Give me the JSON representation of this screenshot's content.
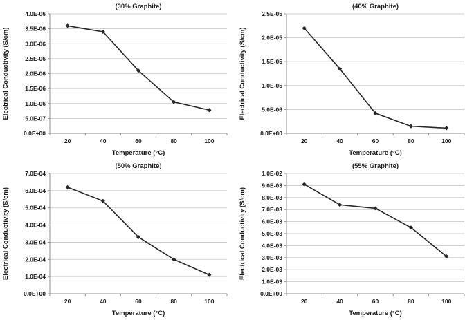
{
  "figure": {
    "background": "#ffffff",
    "grid_color": "#c3c3c3",
    "axis_color": "#8c8c8c",
    "line_color": "#262626",
    "text_color": "#1a1a1a"
  },
  "chart_data": [
    {
      "type": "line",
      "title": "(30% Graphite)",
      "xlabel": "Temperature (°C)",
      "ylabel": "Electrical Conductivity (S/cm)",
      "x_labels": [
        "20",
        "40",
        "60",
        "80",
        "100"
      ],
      "x": [
        20,
        40,
        60,
        80,
        100
      ],
      "values": [
        3.6e-06,
        3.4e-06,
        2.1e-06,
        1.05e-06,
        7.8e-07
      ],
      "ylim": [
        0,
        4e-06
      ],
      "ytick_labels": [
        "0.0E+00",
        "5.0E-07",
        "1.0E-06",
        "1.5E-06",
        "2.0E-06",
        "2.5E-06",
        "3.0E-06",
        "3.5E-06",
        "4.0E-06"
      ],
      "grid": true,
      "legend": "none",
      "marker": "diamond"
    },
    {
      "type": "line",
      "title": "(40% Graphite)",
      "xlabel": "Temperature (°C)",
      "ylabel": "Electrical Conductivity (S/cm)",
      "x_labels": [
        "20",
        "40",
        "60",
        "80",
        "100"
      ],
      "x": [
        20,
        40,
        60,
        80,
        100
      ],
      "values": [
        2.2e-05,
        1.35e-05,
        4.2e-06,
        1.5e-06,
        1.1e-06
      ],
      "ylim": [
        0,
        2.5e-05
      ],
      "ytick_labels": [
        "0.0E+00",
        "5.0E-06",
        "1.0E-05",
        "1.5E-05",
        "2.0E-05",
        "2.5E-05"
      ],
      "grid": true,
      "legend": "none",
      "marker": "diamond"
    },
    {
      "type": "line",
      "title": "(50% Graphite)",
      "xlabel": "Temperature (°C)",
      "ylabel": "Electrical Conductivity (S/cm)",
      "x_labels": [
        "20",
        "40",
        "60",
        "80",
        "100"
      ],
      "x": [
        20,
        40,
        60,
        80,
        100
      ],
      "values": [
        0.00062,
        0.00054,
        0.00033,
        0.0002,
        0.00011
      ],
      "ylim": [
        0,
        0.0007
      ],
      "ytick_labels": [
        "0.0E+00",
        "1.0E-04",
        "2.0E-04",
        "3.0E-04",
        "4.0E-04",
        "5.0E-04",
        "6.0E-04",
        "7.0E-04"
      ],
      "grid": true,
      "legend": "none",
      "marker": "diamond"
    },
    {
      "type": "line",
      "title": "(55% Graphite)",
      "xlabel": "Temperature (°C)",
      "ylabel": "Electrical Conductivity (S/cm)",
      "x_labels": [
        "20",
        "40",
        "60",
        "80",
        "100"
      ],
      "x": [
        20,
        40,
        60,
        80,
        100
      ],
      "values": [
        0.0091,
        0.0074,
        0.0071,
        0.0055,
        0.0031
      ],
      "ylim": [
        0,
        0.01
      ],
      "ytick_labels": [
        "0.0E+00",
        "1.0E-03",
        "2.0E-03",
        "3.0E-03",
        "4.0E-03",
        "5.0E-03",
        "6.0E-03",
        "7.0E-03",
        "8.0E-03",
        "9.0E-03",
        "1.0E-02"
      ],
      "grid": true,
      "legend": "none",
      "marker": "diamond"
    }
  ]
}
